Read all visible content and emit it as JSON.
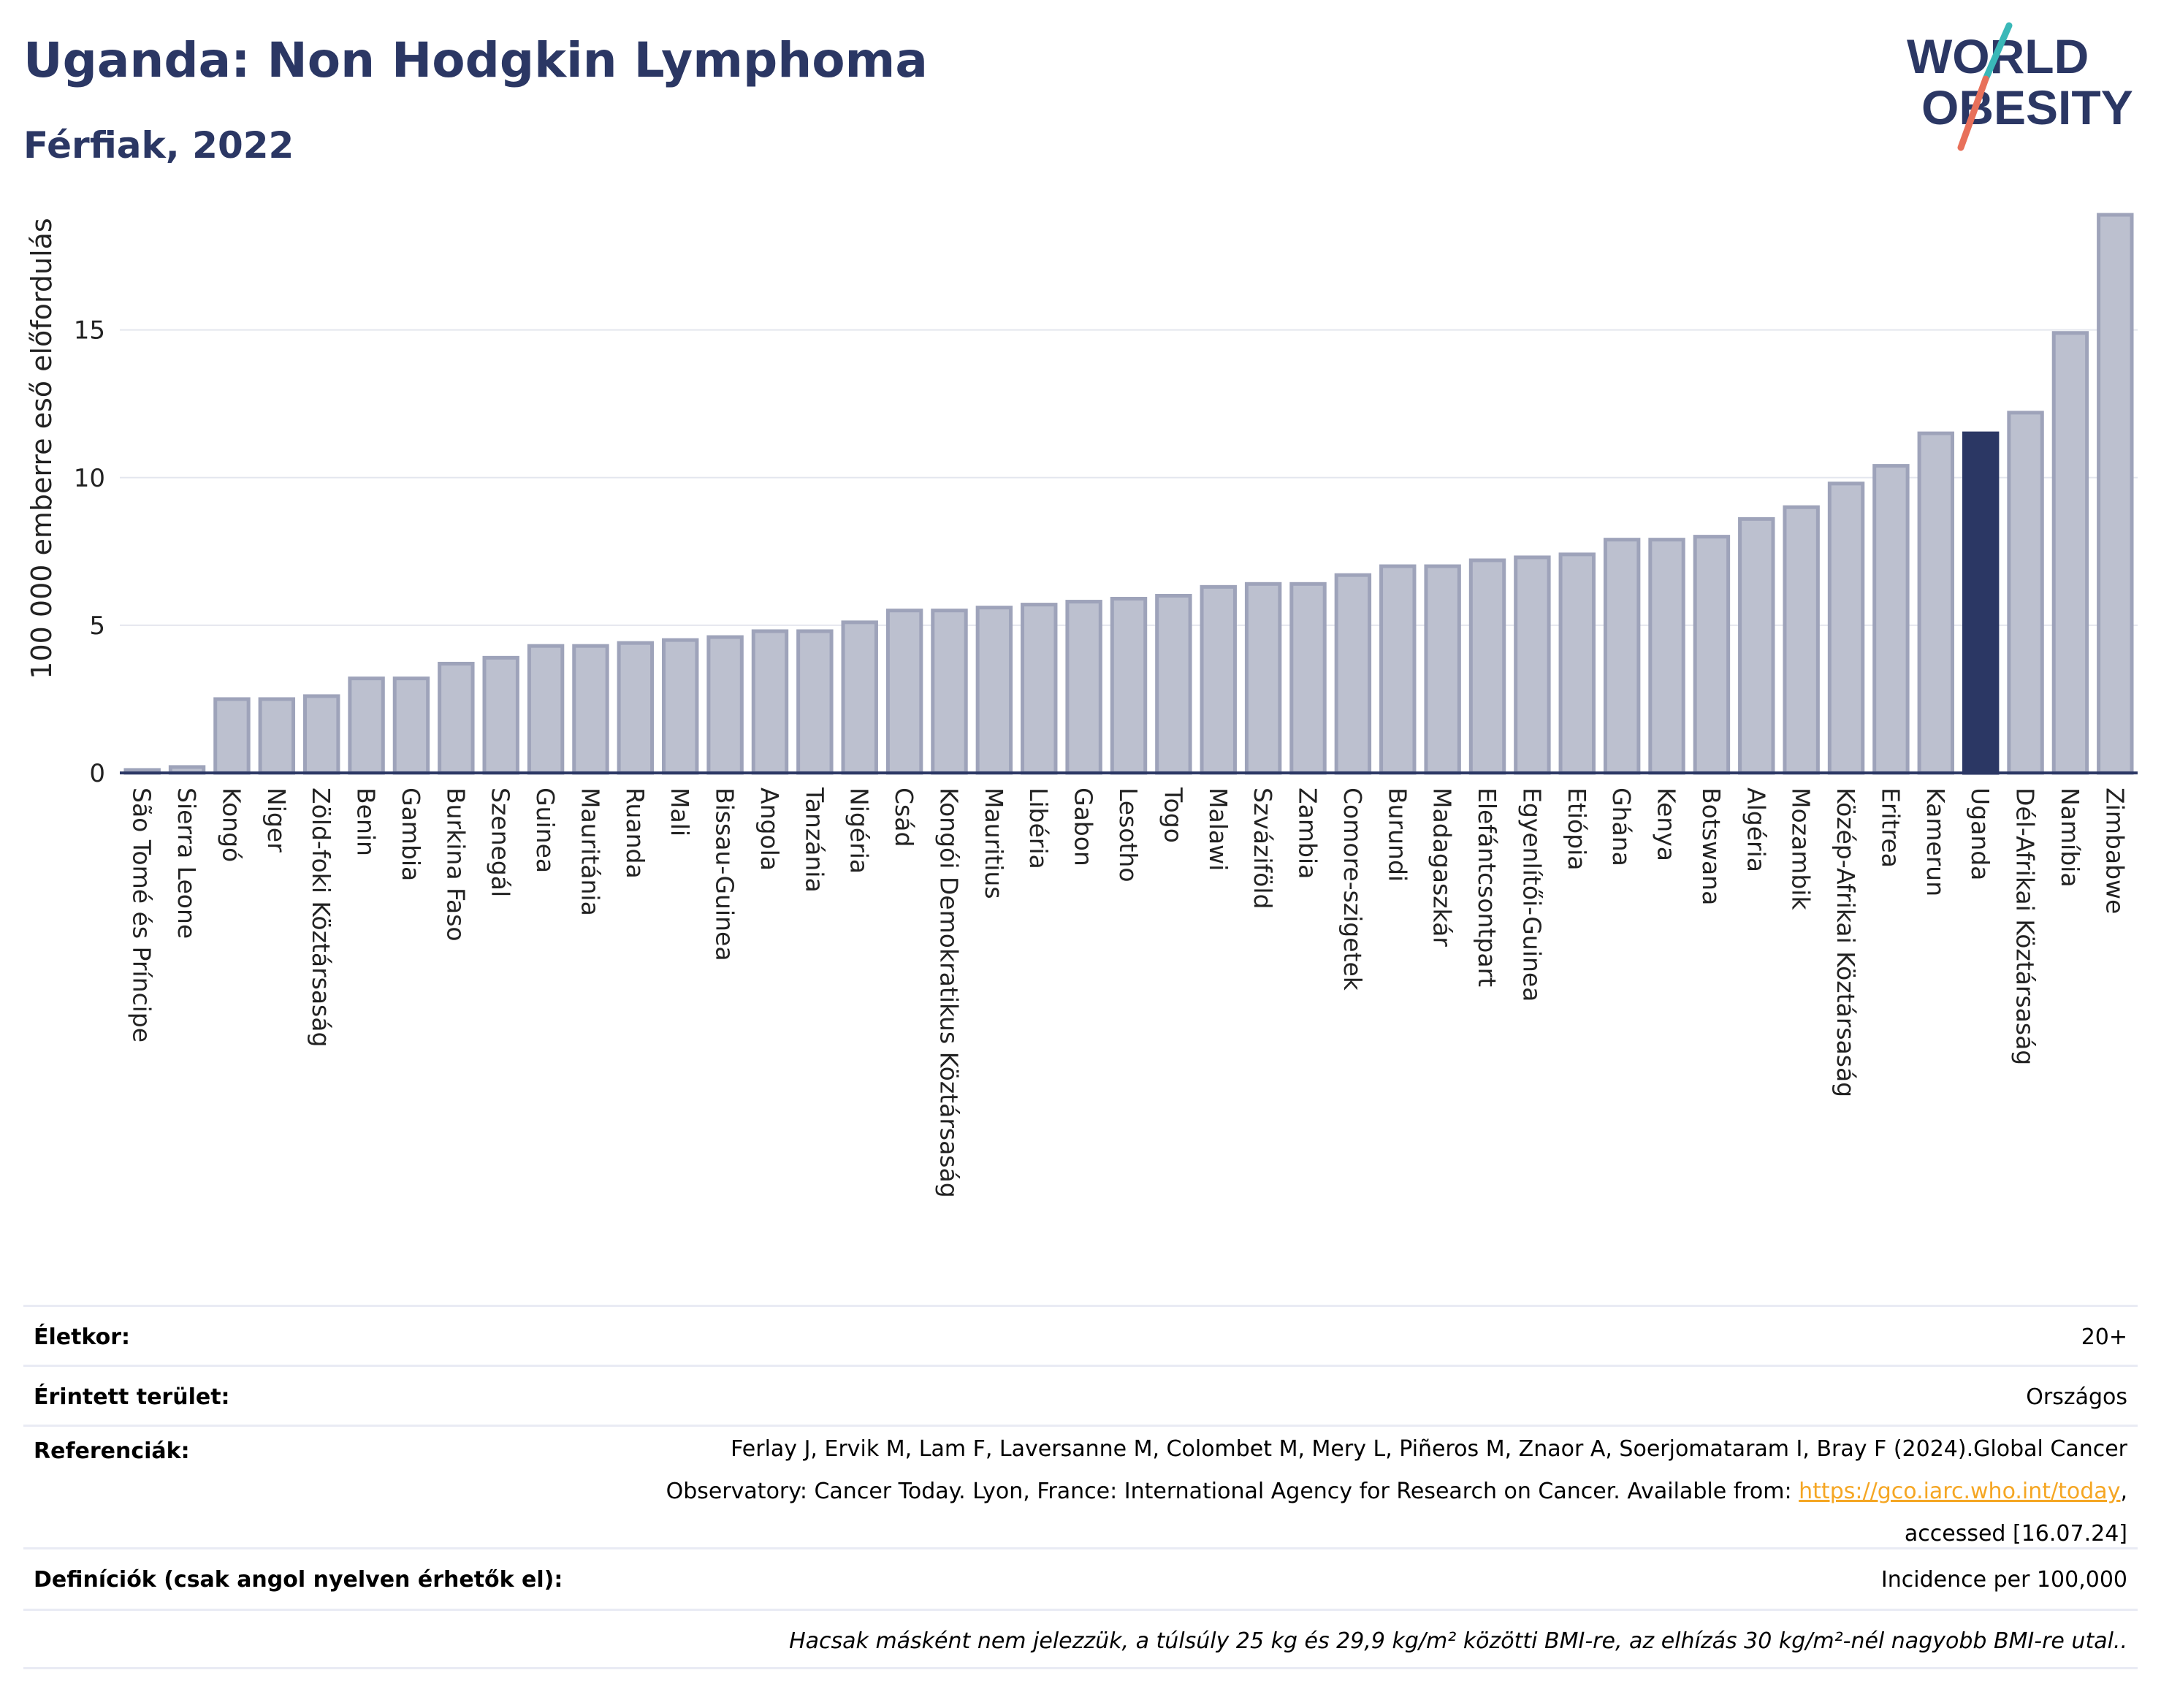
{
  "header": {
    "title": "Uganda: Non Hodgkin Lymphoma",
    "subtitle": "Férfiak, 2022"
  },
  "logo": {
    "line1": "WORLD",
    "line2": "OBESITY",
    "colors": {
      "text": "#2b3764",
      "slash_top": "#3ab8b8",
      "slash_bottom": "#e8705a"
    }
  },
  "chart_data": {
    "type": "bar",
    "title": "Uganda: Non Hodgkin Lymphoma",
    "ylabel": "100 000 emberre eső előfordulás",
    "ylim": [
      0,
      19
    ],
    "yticks": [
      0,
      5,
      10,
      15
    ],
    "grid": true,
    "highlight": "Uganda",
    "colors": {
      "bar": "#bcc0cf",
      "bar_edge": "#9ea3ba",
      "highlight": "#2b3764",
      "axis": "#2b3764",
      "grid": "#e4e6ee"
    },
    "categories": [
      "São Tomé és Príncipe",
      "Sierra Leone",
      "Kongó",
      "Niger",
      "Zöld-foki Köztársaság",
      "Benin",
      "Gambia",
      "Burkina Faso",
      "Szenegál",
      "Guinea",
      "Mauritánia",
      "Ruanda",
      "Mali",
      "Bissau-Guinea",
      "Angola",
      "Tanzánia",
      "Nigéria",
      "Csád",
      "Kongói Demokratikus Köztársaság",
      "Mauritius",
      "Libéria",
      "Gabon",
      "Lesotho",
      "Togo",
      "Malawi",
      "Szváziföld",
      "Zambia",
      "Comore-szigetek",
      "Burundi",
      "Madagaszkár",
      "Elefántcsontpart",
      "Egyenlítői-Guinea",
      "Etiópia",
      "Ghána",
      "Kenya",
      "Botswana",
      "Algéria",
      "Mozambik",
      "Közép-Afrikai Köztársaság",
      "Eritrea",
      "Kamerun",
      "Uganda",
      "Dél-Afrikai Köztársaság",
      "Namíbia",
      "Zimbabwe"
    ],
    "values": [
      0.1,
      0.2,
      2.5,
      2.5,
      2.6,
      3.2,
      3.2,
      3.7,
      3.9,
      4.3,
      4.3,
      4.4,
      4.5,
      4.6,
      4.8,
      4.8,
      5.1,
      5.5,
      5.5,
      5.6,
      5.7,
      5.8,
      5.9,
      6.0,
      6.3,
      6.4,
      6.4,
      6.7,
      7.0,
      7.0,
      7.2,
      7.3,
      7.4,
      7.9,
      7.9,
      8.0,
      8.6,
      9.0,
      9.8,
      10.4,
      11.5,
      11.5,
      12.2,
      14.9,
      18.9
    ]
  },
  "info": {
    "age_label": "Életkor:",
    "age_value": "20+",
    "area_label": "Érintett terület:",
    "area_value": "Országos",
    "ref_label": "Referenciák:",
    "ref_line1": "Ferlay J, Ervik M, Lam F, Laversanne M, Colombet M, Mery L, Piñeros M, Znaor A, Soerjomataram I, Bray F (2024).Global Cancer",
    "ref_line2_prefix": "Observatory: Cancer Today. Lyon, France: International Agency for Research on Cancer. Available from: ",
    "ref_link": "https://gco.iarc.who.int/today",
    "ref_line2_suffix": ",",
    "ref_line3": "accessed [16.07.24]",
    "def_label": "Definíciók (csak angol nyelven érhetők el):",
    "def_value": "Incidence per 100,000",
    "note": "Hacsak másként nem jelezzük, a túlsúly 25 kg és 29,9 kg/m² közötti BMI-re, az elhízás 30 kg/m²-nél nagyobb BMI-re utal.."
  }
}
